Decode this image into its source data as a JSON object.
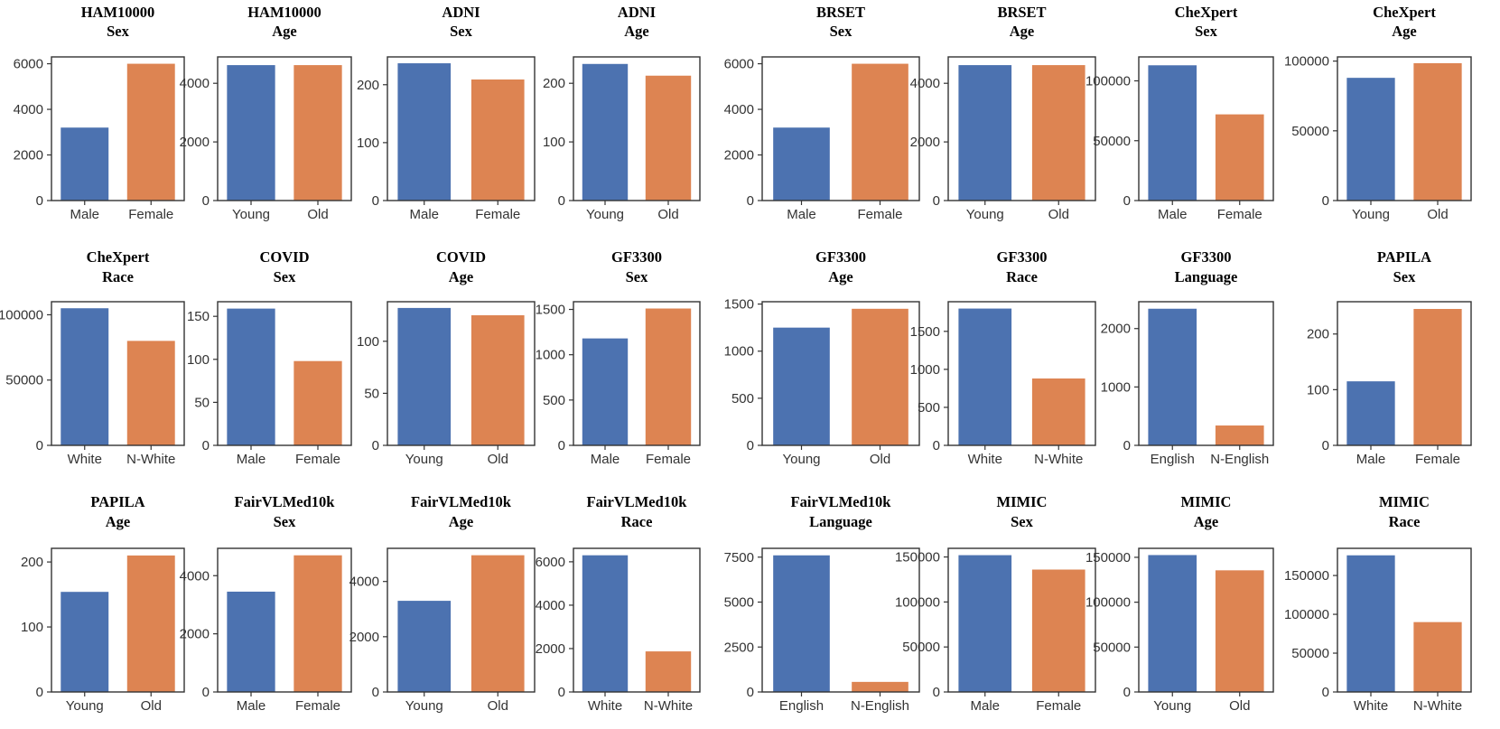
{
  "colors": {
    "group_a": "#4c72b0",
    "group_b": "#dd8452"
  },
  "chart_data": [
    {
      "type": "bar",
      "title": [
        "HAM10000",
        "Sex"
      ],
      "categories": [
        "Male",
        "Female"
      ],
      "values": [
        3200,
        6000
      ],
      "ylim": [
        0,
        6300
      ],
      "yticks": [
        0,
        2000,
        4000,
        6000
      ]
    },
    {
      "type": "bar",
      "title": [
        "HAM10000",
        "Age"
      ],
      "categories": [
        "Young",
        "Old"
      ],
      "values": [
        4620,
        4620
      ],
      "ylim": [
        0,
        4900
      ],
      "yticks": [
        0,
        2000,
        4000
      ]
    },
    {
      "type": "bar",
      "title": [
        "ADNI",
        "Sex"
      ],
      "categories": [
        "Male",
        "Female"
      ],
      "values": [
        237,
        209
      ],
      "ylim": [
        0,
        248
      ],
      "yticks": [
        0,
        100,
        200
      ]
    },
    {
      "type": "bar",
      "title": [
        "ADNI",
        "Age"
      ],
      "categories": [
        "Young",
        "Old"
      ],
      "values": [
        233,
        213
      ],
      "ylim": [
        0,
        245
      ],
      "yticks": [
        0,
        100,
        200
      ]
    },
    {
      "type": "bar",
      "title": [
        "BRSET",
        "Sex"
      ],
      "categories": [
        "Male",
        "Female"
      ],
      "values": [
        3200,
        6000
      ],
      "ylim": [
        0,
        6300
      ],
      "yticks": [
        0,
        2000,
        4000,
        6000
      ]
    },
    {
      "type": "bar",
      "title": [
        "BRSET",
        "Age"
      ],
      "categories": [
        "Young",
        "Old"
      ],
      "values": [
        4620,
        4620
      ],
      "ylim": [
        0,
        4900
      ],
      "yticks": [
        0,
        2000,
        4000
      ]
    },
    {
      "type": "bar",
      "title": [
        "CheXpert",
        "Sex"
      ],
      "categories": [
        "Male",
        "Female"
      ],
      "values": [
        113000,
        72000
      ],
      "ylim": [
        0,
        120000
      ],
      "yticks": [
        0,
        50000,
        100000
      ]
    },
    {
      "type": "bar",
      "title": [
        "CheXpert",
        "Age"
      ],
      "categories": [
        "Young",
        "Old"
      ],
      "values": [
        88000,
        98500
      ],
      "ylim": [
        0,
        103000
      ],
      "yticks": [
        0,
        50000,
        100000
      ]
    },
    {
      "type": "bar",
      "title": [
        "CheXpert",
        "Race"
      ],
      "categories": [
        "White",
        "N-White"
      ],
      "values": [
        105000,
        80000
      ],
      "ylim": [
        0,
        110000
      ],
      "yticks": [
        0,
        50000,
        100000
      ]
    },
    {
      "type": "bar",
      "title": [
        "COVID",
        "Sex"
      ],
      "categories": [
        "Male",
        "Female"
      ],
      "values": [
        159,
        98
      ],
      "ylim": [
        0,
        167
      ],
      "yticks": [
        0,
        50,
        100,
        150
      ]
    },
    {
      "type": "bar",
      "title": [
        "COVID",
        "Age"
      ],
      "categories": [
        "Young",
        "Old"
      ],
      "values": [
        132,
        125
      ],
      "ylim": [
        0,
        138
      ],
      "yticks": [
        0,
        50,
        100
      ]
    },
    {
      "type": "bar",
      "title": [
        "GF3300",
        "Sex"
      ],
      "categories": [
        "Male",
        "Female"
      ],
      "values": [
        1180,
        1510
      ],
      "ylim": [
        0,
        1585
      ],
      "yticks": [
        0,
        500,
        1000,
        1500
      ]
    },
    {
      "type": "bar",
      "title": [
        "GF3300",
        "Age"
      ],
      "categories": [
        "Young",
        "Old"
      ],
      "values": [
        1250,
        1450
      ],
      "ylim": [
        0,
        1525
      ],
      "yticks": [
        0,
        500,
        1000,
        1500
      ]
    },
    {
      "type": "bar",
      "title": [
        "GF3300",
        "Race"
      ],
      "categories": [
        "White",
        "N-White"
      ],
      "values": [
        1800,
        880
      ],
      "ylim": [
        0,
        1890
      ],
      "yticks": [
        0,
        500,
        1000,
        1500
      ]
    },
    {
      "type": "bar",
      "title": [
        "GF3300",
        "Language"
      ],
      "categories": [
        "English",
        "N-English"
      ],
      "values": [
        2340,
        340
      ],
      "ylim": [
        0,
        2460
      ],
      "yticks": [
        0,
        1000,
        2000
      ]
    },
    {
      "type": "bar",
      "title": [
        "PAPILA",
        "Sex"
      ],
      "categories": [
        "Male",
        "Female"
      ],
      "values": [
        115,
        245
      ],
      "ylim": [
        0,
        258
      ],
      "yticks": [
        0,
        100,
        200
      ]
    },
    {
      "type": "bar",
      "title": [
        "PAPILA",
        "Age"
      ],
      "categories": [
        "Young",
        "Old"
      ],
      "values": [
        154,
        210
      ],
      "ylim": [
        0,
        221
      ],
      "yticks": [
        0,
        100,
        200
      ]
    },
    {
      "type": "bar",
      "title": [
        "FairVLMed10k",
        "Sex"
      ],
      "categories": [
        "Male",
        "Female"
      ],
      "values": [
        3450,
        4700
      ],
      "ylim": [
        0,
        4940
      ],
      "yticks": [
        0,
        2000,
        4000
      ]
    },
    {
      "type": "bar",
      "title": [
        "FairVLMed10k",
        "Age"
      ],
      "categories": [
        "Young",
        "Old"
      ],
      "values": [
        3300,
        4950
      ],
      "ylim": [
        0,
        5200
      ],
      "yticks": [
        0,
        2000,
        4000
      ]
    },
    {
      "type": "bar",
      "title": [
        "FairVLMed10k",
        "Race"
      ],
      "categories": [
        "White",
        "N-White"
      ],
      "values": [
        6300,
        1870
      ],
      "ylim": [
        0,
        6620
      ],
      "yticks": [
        0,
        2000,
        4000,
        6000
      ]
    },
    {
      "type": "bar",
      "title": [
        "FairVLMed10k",
        "Language"
      ],
      "categories": [
        "English",
        "N-English"
      ],
      "values": [
        7600,
        560
      ],
      "ylim": [
        0,
        7990
      ],
      "yticks": [
        0,
        2500,
        5000,
        7500
      ]
    },
    {
      "type": "bar",
      "title": [
        "MIMIC",
        "Sex"
      ],
      "categories": [
        "Male",
        "Female"
      ],
      "values": [
        152000,
        136000
      ],
      "ylim": [
        0,
        159600
      ],
      "yticks": [
        0,
        50000,
        100000,
        150000
      ]
    },
    {
      "type": "bar",
      "title": [
        "MIMIC",
        "Age"
      ],
      "categories": [
        "Young",
        "Old"
      ],
      "values": [
        152500,
        135500
      ],
      "ylim": [
        0,
        160000
      ],
      "yticks": [
        0,
        50000,
        100000,
        150000
      ]
    },
    {
      "type": "bar",
      "title": [
        "MIMIC",
        "Race"
      ],
      "categories": [
        "White",
        "N-White"
      ],
      "values": [
        176000,
        90000
      ],
      "ylim": [
        0,
        185000
      ],
      "yticks": [
        0,
        50000,
        100000,
        150000
      ]
    }
  ]
}
